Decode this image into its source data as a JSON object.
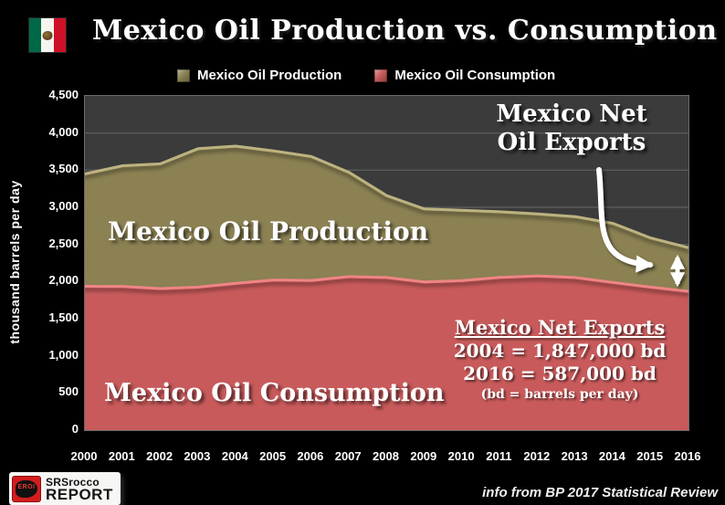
{
  "title": "Mexico Oil Production vs. Consumption",
  "legend": [
    {
      "label": "Mexico Oil Production",
      "color": "#8B8153"
    },
    {
      "label": "Mexico Oil Consumption",
      "color": "#C85A5B"
    }
  ],
  "chart_data": {
    "type": "area",
    "title": "Mexico Oil Production vs. Consumption",
    "x": [
      2000,
      2001,
      2002,
      2003,
      2004,
      2005,
      2006,
      2007,
      2008,
      2009,
      2010,
      2011,
      2012,
      2013,
      2014,
      2015,
      2016
    ],
    "series": [
      {
        "name": "Mexico Oil Production",
        "color": "#8B8153",
        "edge_color": "#BDB380",
        "values": [
          3450,
          3560,
          3585,
          3789,
          3824,
          3760,
          3683,
          3471,
          3157,
          2978,
          2959,
          2940,
          2911,
          2875,
          2784,
          2587,
          2456
        ]
      },
      {
        "name": "Mexico Oil Consumption",
        "color": "#C85A5B",
        "edge_color": "#EF8585",
        "values": [
          1936,
          1935,
          1906,
          1925,
          1977,
          2021,
          2015,
          2067,
          2054,
          1996,
          2014,
          2057,
          2077,
          2054,
          1988,
          1926,
          1869
        ]
      }
    ],
    "xlabel": "",
    "ylabel": "thousand barrels per day",
    "ylim": [
      0,
      4500
    ],
    "ytick_step": 500,
    "grid": true,
    "legend_position": "top",
    "plot_bg": "#3B3B3B",
    "grid_color": "#5A5A5A"
  },
  "annotations": {
    "callout_line1": "Mexico Net",
    "callout_line2": "Oil Exports",
    "box_title": "Mexico Net Exports",
    "box_line1": "2004 = 1,847,000 bd",
    "box_line2": "2016 = 587,000 bd",
    "box_note": "(bd = barrels per day)"
  },
  "footer": {
    "logo_icon_text": "EROI",
    "logo_line1": "SRSrocco",
    "logo_line2": "REPORT",
    "credit": "info from BP 2017 Statistical Review"
  }
}
